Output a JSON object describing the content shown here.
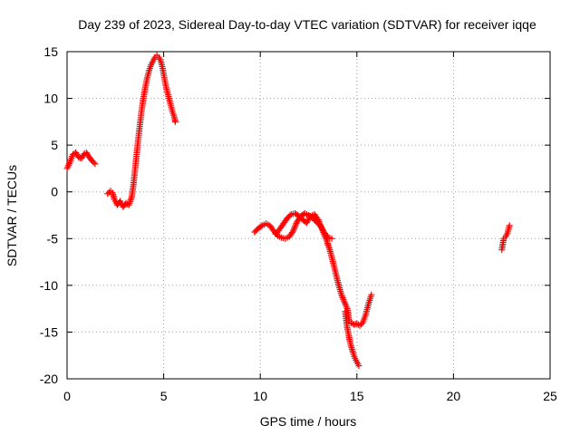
{
  "chart_data": {
    "type": "scatter",
    "title": "Day 239 of 2023, Sidereal Day-to-day VTEC variation (SDTVAR) for receiver iqqe",
    "xlabel": "GPS time / hours",
    "ylabel": "SDTVAR / TECUs",
    "xlim": [
      0,
      25
    ],
    "ylim": [
      -20,
      15
    ],
    "x_ticks": [
      0,
      5,
      10,
      15,
      20,
      25
    ],
    "y_ticks": [
      -20,
      -15,
      -10,
      -5,
      0,
      5,
      10,
      15
    ],
    "grid": true,
    "marker": "+",
    "series_color": "#ff0000",
    "series": [
      {
        "name": "SDTVAR",
        "segments": [
          [
            [
              0.0,
              2.5
            ],
            [
              0.15,
              3.2
            ],
            [
              0.3,
              4.0
            ],
            [
              0.45,
              4.2
            ],
            [
              0.6,
              3.7
            ],
            [
              0.75,
              3.6
            ],
            [
              0.9,
              4.1
            ],
            [
              1.0,
              4.2
            ],
            [
              1.15,
              3.7
            ],
            [
              1.3,
              3.3
            ],
            [
              1.45,
              3.0
            ]
          ],
          [
            [
              2.1,
              -0.2
            ],
            [
              2.25,
              0.1
            ],
            [
              2.35,
              -0.1
            ],
            [
              2.45,
              -0.8
            ],
            [
              2.6,
              -1.4
            ],
            [
              2.75,
              -1.0
            ],
            [
              2.9,
              -1.6
            ],
            [
              3.05,
              -1.2
            ],
            [
              3.2,
              -1.4
            ],
            [
              3.35,
              -0.5
            ],
            [
              3.45,
              1.0
            ],
            [
              3.55,
              3.0
            ],
            [
              3.65,
              5.0
            ],
            [
              3.75,
              6.8
            ],
            [
              3.85,
              8.6
            ],
            [
              3.95,
              10.0
            ],
            [
              4.05,
              11.2
            ],
            [
              4.15,
              12.2
            ],
            [
              4.25,
              13.0
            ],
            [
              4.35,
              13.6
            ],
            [
              4.45,
              14.0
            ],
            [
              4.55,
              14.4
            ],
            [
              4.65,
              14.6
            ],
            [
              4.75,
              14.4
            ],
            [
              4.85,
              14.0
            ],
            [
              4.95,
              13.2
            ],
            [
              5.05,
              12.0
            ],
            [
              5.15,
              11.0
            ],
            [
              5.25,
              10.2
            ],
            [
              5.35,
              9.4
            ],
            [
              5.45,
              8.6
            ],
            [
              5.55,
              8.0
            ],
            [
              5.6,
              7.5
            ]
          ],
          [
            [
              9.7,
              -4.3
            ],
            [
              9.9,
              -3.9
            ],
            [
              10.1,
              -3.6
            ],
            [
              10.3,
              -3.4
            ],
            [
              10.5,
              -3.6
            ],
            [
              10.7,
              -4.2
            ],
            [
              10.9,
              -4.7
            ],
            [
              11.1,
              -4.9
            ],
            [
              11.3,
              -5.0
            ],
            [
              11.5,
              -4.8
            ],
            [
              11.7,
              -4.2
            ],
            [
              11.9,
              -3.2
            ],
            [
              12.1,
              -2.6
            ],
            [
              12.3,
              -2.3
            ],
            [
              12.5,
              -2.5
            ],
            [
              12.7,
              -2.8
            ],
            [
              12.9,
              -3.2
            ],
            [
              13.1,
              -3.6
            ],
            [
              13.3,
              -4.3
            ],
            [
              13.5,
              -4.9
            ],
            [
              13.7,
              -5.0
            ]
          ],
          [
            [
              10.8,
              -4.5
            ],
            [
              11.0,
              -4.0
            ],
            [
              11.2,
              -3.4
            ],
            [
              11.4,
              -2.8
            ],
            [
              11.6,
              -2.4
            ],
            [
              11.8,
              -2.3
            ],
            [
              12.0,
              -2.6
            ],
            [
              12.2,
              -3.0
            ],
            [
              12.4,
              -3.3
            ],
            [
              12.6,
              -2.6
            ],
            [
              12.8,
              -2.4
            ],
            [
              13.0,
              -3.0
            ],
            [
              13.2,
              -4.0
            ],
            [
              13.4,
              -5.0
            ],
            [
              13.6,
              -6.2
            ],
            [
              13.8,
              -7.8
            ],
            [
              14.0,
              -9.5
            ],
            [
              14.2,
              -11.0
            ],
            [
              14.4,
              -12.0
            ],
            [
              14.5,
              -12.5
            ],
            [
              14.6,
              -13.8
            ],
            [
              14.7,
              -14.0
            ],
            [
              14.85,
              -14.2
            ],
            [
              15.0,
              -14.1
            ],
            [
              15.15,
              -14.3
            ],
            [
              15.3,
              -14.0
            ],
            [
              15.45,
              -13.2
            ],
            [
              15.6,
              -12.0
            ],
            [
              15.75,
              -11.0
            ]
          ],
          [
            [
              14.4,
              -12.8
            ],
            [
              14.5,
              -14.5
            ],
            [
              14.6,
              -15.6
            ],
            [
              14.7,
              -16.5
            ],
            [
              14.8,
              -17.2
            ],
            [
              14.9,
              -17.8
            ],
            [
              15.0,
              -18.2
            ],
            [
              15.1,
              -18.6
            ]
          ],
          [
            [
              22.5,
              -6.2
            ],
            [
              22.55,
              -5.6
            ],
            [
              22.6,
              -5.0
            ],
            [
              22.7,
              -4.8
            ],
            [
              22.8,
              -4.4
            ],
            [
              22.85,
              -4.0
            ],
            [
              22.9,
              -3.6
            ]
          ]
        ]
      }
    ]
  }
}
